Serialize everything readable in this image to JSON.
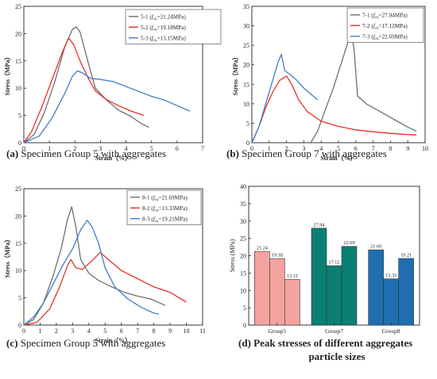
{
  "colors": {
    "s1": "#6f6f6f",
    "s2": "#e8302a",
    "s3": "#3e7fc8",
    "bar_group5": "#f4a3a0",
    "bar_group7": "#0a7f73",
    "bar_group8": "#1f6fb0",
    "axis": "#222222"
  },
  "chart_data": [
    {
      "id": "a",
      "type": "line",
      "caption": {
        "tag": "(a)",
        "text": "Specimen Group 5 with aggregates"
      },
      "xlabel": "Strain（%）",
      "ylabel": "Stress（MPa）",
      "xlim": [
        0,
        7
      ],
      "ylim": [
        0,
        25
      ],
      "xticks": [
        0,
        1,
        2,
        3,
        4,
        5,
        6,
        7
      ],
      "yticks": [
        0,
        5,
        10,
        15,
        20,
        25
      ],
      "legend": {
        "position": "top-right",
        "fc_symbol": "f",
        "fc_subscript": "cu"
      },
      "series": [
        {
          "name": "5-1",
          "label_prefix": "5-1 (",
          "label_value": "=21.24MPa)",
          "color_key": "s1",
          "x": [
            0,
            0.4,
            0.8,
            1.2,
            1.6,
            1.9,
            2.05,
            2.2,
            2.5,
            2.8,
            3.2,
            3.7,
            4.2,
            4.6,
            4.9
          ],
          "y": [
            0,
            1.5,
            5.5,
            11,
            17.5,
            20.8,
            21.24,
            20.3,
            15,
            10,
            8,
            6,
            4.8,
            3.5,
            2.8
          ]
        },
        {
          "name": "5-2",
          "label_prefix": "5-2 (",
          "label_value": "=19.18MPa)",
          "color_key": "s2",
          "x": [
            0,
            0.3,
            0.7,
            1.1,
            1.5,
            1.75,
            1.95,
            2.2,
            2.5,
            2.8,
            3.2,
            3.7,
            4.2,
            4.7
          ],
          "y": [
            0,
            2,
            6.5,
            11.5,
            16.5,
            19.18,
            18,
            15,
            12,
            9.5,
            8,
            6.8,
            5.8,
            5
          ]
        },
        {
          "name": "5-3",
          "label_prefix": "5-3 (",
          "label_value": "=13.15MPa)",
          "color_key": "s3",
          "x": [
            0,
            0.6,
            1.1,
            1.6,
            1.9,
            2.1,
            2.3,
            2.6,
            3.0,
            3.5,
            4.0,
            4.5,
            5.0,
            5.5,
            6.0,
            6.5
          ],
          "y": [
            0,
            1.2,
            4.5,
            9,
            12.2,
            13.15,
            12.8,
            11.8,
            11.6,
            11.2,
            10.3,
            9.4,
            8.5,
            7.8,
            6.8,
            5.8
          ]
        }
      ]
    },
    {
      "id": "b",
      "type": "line",
      "caption": {
        "tag": "(b)",
        "text": "Specimen Group 7 with aggregates"
      },
      "xlabel": "Strain（%）",
      "ylabel": "Stress（MPa）",
      "xlim": [
        0,
        10
      ],
      "ylim": [
        0,
        35
      ],
      "xticks": [
        0,
        1,
        2,
        3,
        4,
        5,
        6,
        7,
        8,
        9,
        10
      ],
      "yticks": [
        0,
        5,
        10,
        15,
        20,
        25,
        30,
        35
      ],
      "legend": {
        "position": "top-right",
        "fc_symbol": "f",
        "fc_subscript": "cu"
      },
      "series": [
        {
          "name": "7-1",
          "label_prefix": "7-1 (",
          "label_value": "=27.94MPa)",
          "color_key": "s1",
          "x": [
            3.4,
            3.8,
            4.2,
            4.7,
            5.2,
            5.6,
            5.75,
            5.9,
            6.1,
            6.6,
            7.2,
            7.8,
            8.4,
            9.0,
            9.5
          ],
          "y": [
            0,
            3,
            8,
            14,
            21,
            26.5,
            27.94,
            24,
            12,
            10,
            8.5,
            7,
            5.5,
            4,
            3
          ]
        },
        {
          "name": "7-2",
          "label_prefix": "7-2 (",
          "label_value": "=17.12MPa)",
          "color_key": "s2",
          "x": [
            0,
            0.4,
            0.8,
            1.2,
            1.6,
            2.0,
            2.3,
            2.7,
            3.2,
            4.0,
            5.0,
            6.0,
            7.0,
            8.0,
            9.0,
            9.5
          ],
          "y": [
            0,
            4,
            9,
            13,
            16,
            17.12,
            15,
            11,
            8,
            5.5,
            4.2,
            3.3,
            2.8,
            2.4,
            2.1,
            2.0
          ]
        },
        {
          "name": "7-3",
          "label_prefix": "7-3 (",
          "label_value": "=22.69MPa)",
          "color_key": "s3",
          "x": [
            0,
            0.4,
            0.8,
            1.2,
            1.5,
            1.7,
            1.9,
            2.2,
            2.6,
            3.0,
            3.4,
            3.8
          ],
          "y": [
            0,
            4,
            10,
            16,
            20.5,
            22.69,
            18.5,
            17.5,
            16,
            14,
            12.5,
            11
          ]
        }
      ]
    },
    {
      "id": "c",
      "type": "line",
      "caption": {
        "tag": "(c)",
        "text": "Specimen Group 5 with aggregates"
      },
      "xlabel": "Strain（%）",
      "ylabel": "Stress（MPa）",
      "xlim": [
        0,
        11
      ],
      "ylim": [
        0,
        25
      ],
      "xticks": [
        0,
        1,
        2,
        3,
        4,
        5,
        6,
        7,
        8,
        9,
        10,
        11
      ],
      "yticks": [
        0,
        5,
        10,
        15,
        20,
        25
      ],
      "legend": {
        "position": "top-right",
        "fc_symbol": "f",
        "fc_subscript": "cu"
      },
      "series": [
        {
          "name": "8-1",
          "label_prefix": "8-1 (",
          "label_value": "=21.69MPa)",
          "color_key": "s1",
          "x": [
            0,
            0.6,
            1.2,
            1.8,
            2.3,
            2.7,
            2.95,
            3.2,
            3.5,
            4.0,
            4.6,
            5.4,
            6.2,
            7.0,
            7.8,
            8.7
          ],
          "y": [
            0,
            1,
            4,
            9,
            14,
            19.5,
            21.69,
            18,
            12,
            9.5,
            8.2,
            7,
            6,
            5.3,
            4.8,
            3.6
          ]
        },
        {
          "name": "8-2",
          "label_prefix": "8-2 (",
          "label_value": "=13.33MPa)",
          "color_key": "s2",
          "x": [
            0,
            0.8,
            1.6,
            2.2,
            2.7,
            2.9,
            3.2,
            3.6,
            4.2,
            4.7,
            5.2,
            6.0,
            7.0,
            8.0,
            9.0,
            10.0
          ],
          "y": [
            0,
            0.5,
            3,
            7,
            11,
            12,
            10.5,
            10.2,
            11.8,
            13.33,
            12,
            10,
            8.5,
            7,
            6,
            4.2
          ]
        },
        {
          "name": "8-3",
          "label_prefix": "8-3 (",
          "label_value": "=19.21MPa)",
          "color_key": "s3",
          "x": [
            0,
            0.6,
            1.2,
            1.8,
            2.4,
            3.0,
            3.5,
            3.9,
            4.2,
            4.6,
            5.0,
            5.6,
            6.4,
            7.2,
            8.0,
            8.3
          ],
          "y": [
            0,
            1.5,
            4,
            7.5,
            11,
            14,
            17.5,
            19.21,
            18,
            15,
            10.5,
            7,
            4.8,
            3.3,
            2.2,
            2
          ]
        }
      ]
    },
    {
      "id": "d",
      "type": "bar",
      "caption": {
        "tag": "(d)",
        "text": "Peak stresses of different aggregates",
        "text2": "particle sizes"
      },
      "ylabel": "Stress (MPa)",
      "ylim": [
        0,
        40
      ],
      "yticks": [
        0,
        5,
        10,
        15,
        20,
        25,
        30,
        35,
        40
      ],
      "categories": [
        "Group5",
        "Group7",
        "Group8"
      ],
      "groups": [
        {
          "category": "Group5",
          "color_key": "bar_group5",
          "values": [
            21.24,
            19.18,
            13.15
          ],
          "labels": [
            "21.24",
            "19.18",
            "13.15"
          ]
        },
        {
          "category": "Group7",
          "color_key": "bar_group7",
          "values": [
            27.94,
            17.12,
            22.69
          ],
          "labels": [
            "27.94",
            "17.12",
            "22.69"
          ]
        },
        {
          "category": "Group8",
          "color_key": "bar_group8",
          "values": [
            21.69,
            13.33,
            19.21
          ],
          "labels": [
            "21.69",
            "13.33",
            "19.21"
          ]
        }
      ]
    }
  ]
}
